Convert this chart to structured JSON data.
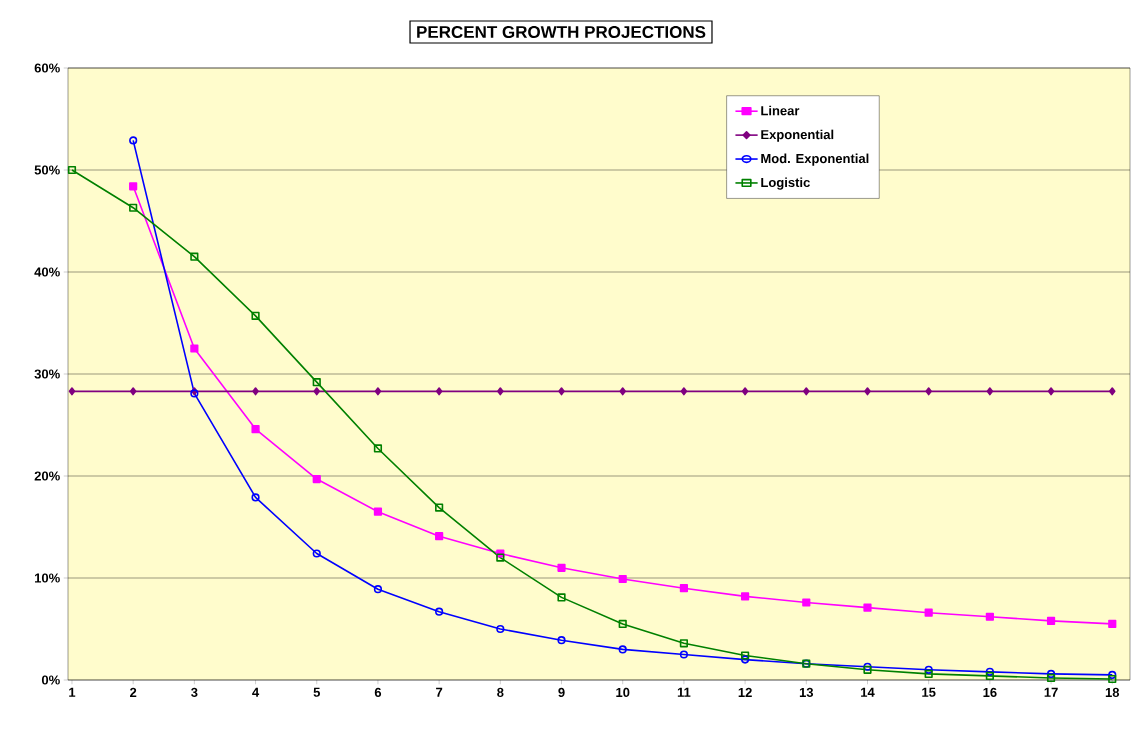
{
  "chart_data": {
    "type": "line",
    "title": "PERCENT GROWTH PROJECTIONS",
    "categories": [
      "1",
      "2",
      "3",
      "4",
      "5",
      "6",
      "7",
      "8",
      "9",
      "10",
      "11",
      "12",
      "13",
      "14",
      "15",
      "16",
      "17",
      "18"
    ],
    "series": [
      {
        "name": "Linear",
        "color": "#ff00ff",
        "marker": "square",
        "values": [
          null,
          48.4,
          32.5,
          24.6,
          19.7,
          16.5,
          14.1,
          12.4,
          11.0,
          9.9,
          9.0,
          8.2,
          7.6,
          7.1,
          6.6,
          6.2,
          5.8,
          5.5
        ]
      },
      {
        "name": "Exponential",
        "color": "#800080",
        "marker": "diamond",
        "values": [
          28.3,
          28.3,
          28.3,
          28.3,
          28.3,
          28.3,
          28.3,
          28.3,
          28.3,
          28.3,
          28.3,
          28.3,
          28.3,
          28.3,
          28.3,
          28.3,
          28.3,
          28.3
        ]
      },
      {
        "name": "Mod. Exponential",
        "color": "#0000ff",
        "marker": "circle",
        "values": [
          null,
          52.9,
          28.1,
          17.9,
          12.4,
          8.9,
          6.7,
          5.0,
          3.9,
          3.0,
          2.5,
          2.0,
          1.6,
          1.3,
          1.0,
          0.8,
          0.6,
          0.5
        ]
      },
      {
        "name": "Logistic",
        "color": "#008000",
        "marker": "square",
        "values": [
          50.0,
          46.3,
          41.5,
          35.7,
          29.2,
          22.7,
          16.9,
          12.0,
          8.1,
          5.5,
          3.6,
          2.4,
          1.6,
          1.0,
          0.6,
          0.4,
          0.2,
          0.1
        ]
      }
    ],
    "ylim": [
      0,
      60
    ],
    "yticks": [
      {
        "value": 0,
        "label": "0%"
      },
      {
        "value": 10,
        "label": "10%"
      },
      {
        "value": 20,
        "label": "20%"
      },
      {
        "value": 30,
        "label": "30%"
      },
      {
        "value": 40,
        "label": "40%"
      },
      {
        "value": 50,
        "label": "50%"
      },
      {
        "value": 60,
        "label": "60%"
      }
    ],
    "grid": "y",
    "legend": "top right",
    "line_style": "solid"
  }
}
